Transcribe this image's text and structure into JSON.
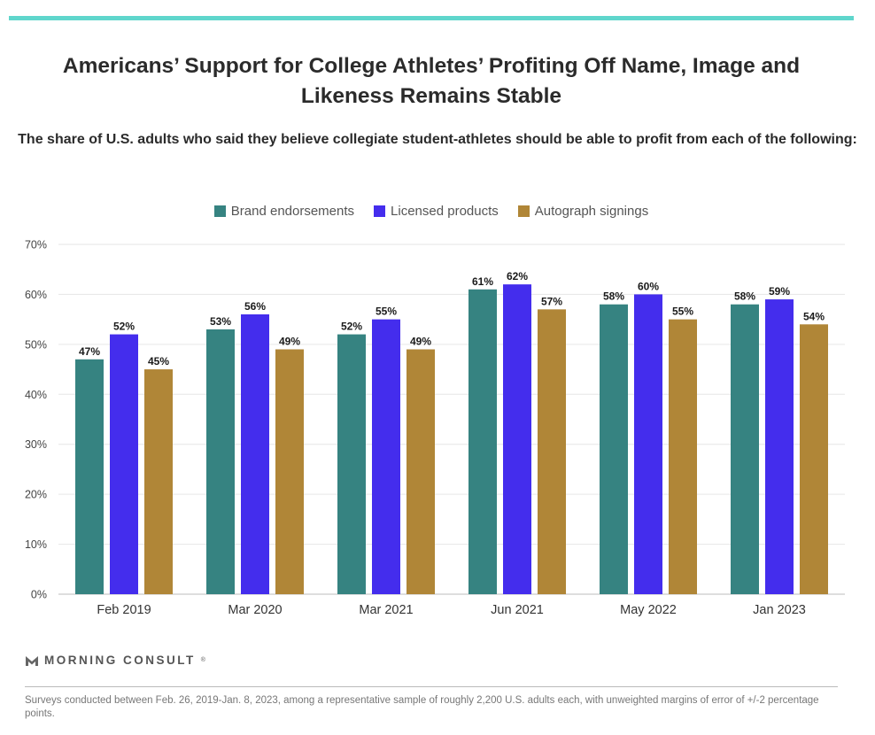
{
  "header": {
    "title": "Americans’ Support for College Athletes’ Profiting Off Name, Image and Likeness Remains Stable",
    "subtitle": "The share of U.S. adults who said they believe collegiate student-athletes should be able to profit from each of the following:",
    "accent_color": "#5fd6cc"
  },
  "chart_data": {
    "type": "bar",
    "categories": [
      "Feb 2019",
      "Mar 2020",
      "Mar 2021",
      "Jun 2021",
      "May 2022",
      "Jan 2023"
    ],
    "series": [
      {
        "name": "Brand endorsements",
        "color": "#368381",
        "values": [
          47,
          53,
          52,
          61,
          58,
          58
        ]
      },
      {
        "name": "Licensed products",
        "color": "#442ded",
        "values": [
          52,
          56,
          55,
          62,
          60,
          59
        ]
      },
      {
        "name": "Autograph signings",
        "color": "#b08637",
        "values": [
          45,
          49,
          49,
          57,
          55,
          54
        ]
      }
    ],
    "yticks": [
      "0%",
      "10%",
      "20%",
      "30%",
      "40%",
      "50%",
      "60%",
      "70%"
    ],
    "ylim": [
      0,
      70
    ],
    "value_suffix": "%",
    "grid": true,
    "legend_position": "top-center"
  },
  "footer": {
    "brand": "MORNING CONSULT",
    "brand_mark": "®",
    "note": "Surveys conducted between Feb. 26, 2019-Jan. 8, 2023, among a representative sample of roughly 2,200 U.S. adults each, with unweighted margins of error of +/-2 percentage points."
  }
}
